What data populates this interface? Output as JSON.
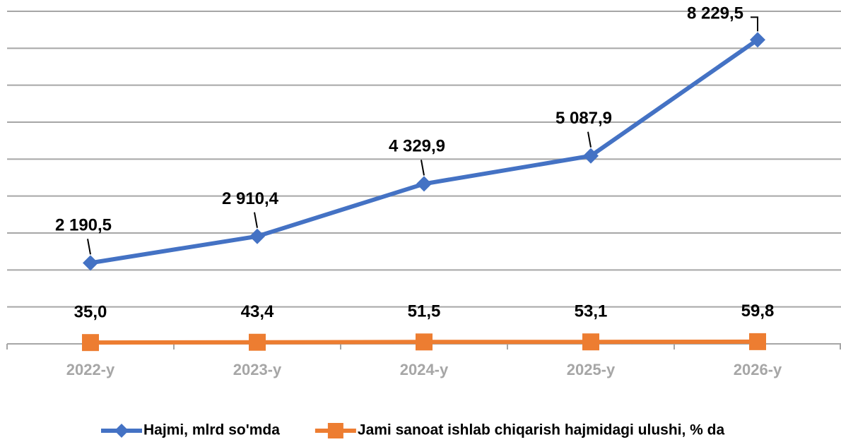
{
  "chart_data": {
    "type": "line",
    "categories": [
      "2022-y",
      "2023-y",
      "2024-y",
      "2025-y",
      "2026-y"
    ],
    "series": [
      {
        "name": "Hajmi, mlrd so'mda",
        "color": "#4472c4",
        "marker": "diamond",
        "values": [
          2190.5,
          2910.4,
          4329.9,
          5087.9,
          8229.5
        ],
        "value_labels": [
          "2 190,5",
          "2 910,4",
          "4 329,9",
          "5 087,9",
          "8 229,5"
        ]
      },
      {
        "name": "Jami sanoat ishlab chiqarish hajmidagi ulushi, % da",
        "color": "#ed7d31",
        "marker": "square",
        "values": [
          35.0,
          43.4,
          51.5,
          53.1,
          59.8
        ],
        "value_labels": [
          "35,0",
          "43,4",
          "51,5",
          "53,1",
          "59,8"
        ]
      }
    ],
    "ylim": [
      0,
      9000
    ],
    "yticks": [
      0,
      1000,
      2000,
      3000,
      4000,
      5000,
      6000,
      7000,
      8000,
      9000
    ],
    "grid": true,
    "legend": "bottom"
  }
}
